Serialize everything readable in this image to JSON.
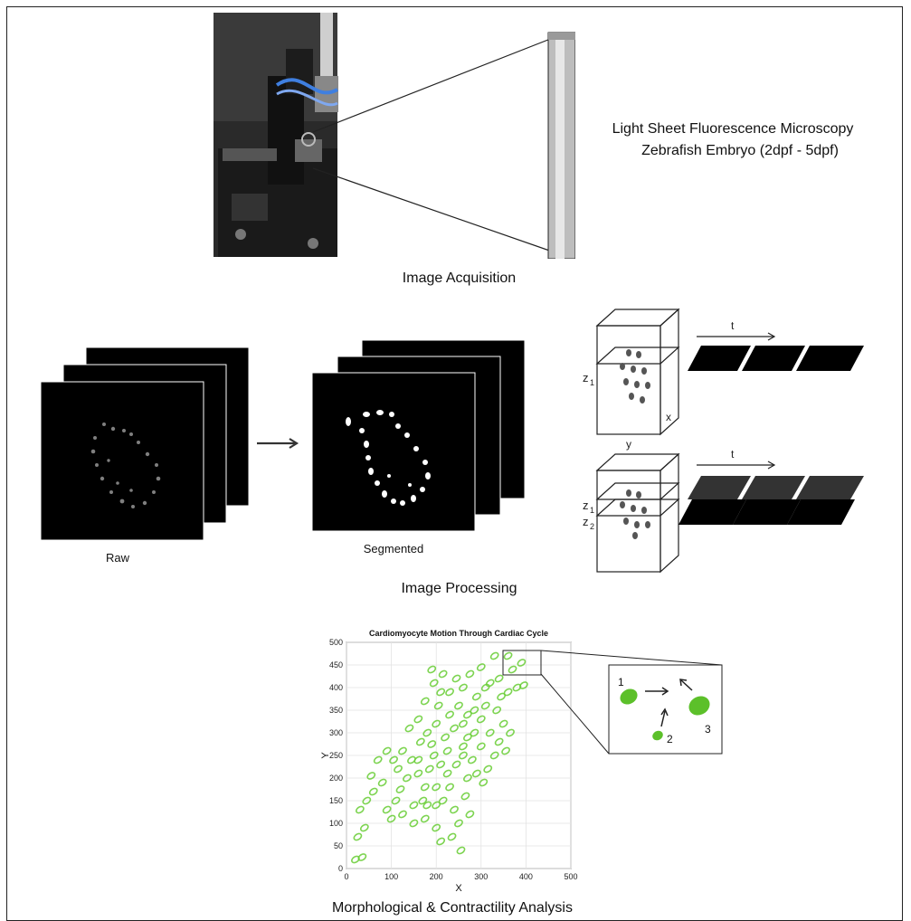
{
  "acquisition": {
    "title_line1": "Light Sheet Fluorescence Microscopy",
    "title_line2": "Zebrafish Embryo (2dpf - 5dpf)",
    "caption": "Image Acquisition"
  },
  "processing": {
    "raw_label": "Raw",
    "segmented_label": "Segmented",
    "caption": "Image Processing",
    "stack_axis_t": "t",
    "stack_axis_x": "x",
    "stack_axis_y": "y",
    "stack_z1": "z",
    "stack_z1_sub": "1",
    "stack_z2": "z",
    "stack_z2_sub": "2"
  },
  "analysis": {
    "caption": "Morphological & Contractility Analysis",
    "inset_labels": [
      "1",
      "2",
      "3"
    ]
  },
  "chart_data": {
    "type": "scatter",
    "title": "Cardiomyocyte Motion Through Cardiac Cycle",
    "xlabel": "X",
    "ylabel": "Y",
    "xlim": [
      0,
      500
    ],
    "ylim": [
      0,
      500
    ],
    "xticks": [
      0,
      100,
      200,
      300,
      400,
      500
    ],
    "yticks": [
      0,
      50,
      100,
      150,
      200,
      250,
      300,
      350,
      400,
      450,
      500
    ],
    "grid": true,
    "marker_color": "#66cc33",
    "points": [
      [
        20,
        20
      ],
      [
        35,
        25
      ],
      [
        25,
        70
      ],
      [
        40,
        90
      ],
      [
        30,
        130
      ],
      [
        45,
        150
      ],
      [
        60,
        170
      ],
      [
        55,
        205
      ],
      [
        80,
        190
      ],
      [
        90,
        130
      ],
      [
        100,
        110
      ],
      [
        110,
        150
      ],
      [
        120,
        175
      ],
      [
        115,
        220
      ],
      [
        135,
        200
      ],
      [
        145,
        240
      ],
      [
        160,
        210
      ],
      [
        150,
        140
      ],
      [
        170,
        150
      ],
      [
        175,
        180
      ],
      [
        185,
        220
      ],
      [
        195,
        250
      ],
      [
        165,
        280
      ],
      [
        180,
        300
      ],
      [
        200,
        320
      ],
      [
        190,
        275
      ],
      [
        210,
        230
      ],
      [
        225,
        210
      ],
      [
        230,
        180
      ],
      [
        215,
        150
      ],
      [
        240,
        130
      ],
      [
        250,
        100
      ],
      [
        235,
        70
      ],
      [
        255,
        40
      ],
      [
        265,
        160
      ],
      [
        270,
        200
      ],
      [
        280,
        240
      ],
      [
        260,
        270
      ],
      [
        285,
        300
      ],
      [
        300,
        330
      ],
      [
        270,
        340
      ],
      [
        250,
        360
      ],
      [
        240,
        310
      ],
      [
        220,
        290
      ],
      [
        205,
        360
      ],
      [
        230,
        390
      ],
      [
        260,
        400
      ],
      [
        290,
        380
      ],
      [
        310,
        360
      ],
      [
        320,
        300
      ],
      [
        300,
        270
      ],
      [
        330,
        250
      ],
      [
        340,
        280
      ],
      [
        350,
        320
      ],
      [
        320,
        410
      ],
      [
        340,
        420
      ],
      [
        360,
        390
      ],
      [
        380,
        400
      ],
      [
        395,
        405
      ],
      [
        370,
        440
      ],
      [
        390,
        455
      ],
      [
        360,
        470
      ],
      [
        330,
        470
      ],
      [
        140,
        310
      ],
      [
        125,
        260
      ],
      [
        105,
        240
      ],
      [
        200,
        180
      ],
      [
        150,
        100
      ],
      [
        175,
        110
      ],
      [
        200,
        90
      ],
      [
        210,
        60
      ],
      [
        245,
        230
      ],
      [
        260,
        250
      ],
      [
        290,
        210
      ],
      [
        305,
        190
      ],
      [
        315,
        220
      ],
      [
        275,
        120
      ],
      [
        225,
        260
      ],
      [
        160,
        330
      ],
      [
        175,
        370
      ],
      [
        195,
        410
      ],
      [
        215,
        430
      ],
      [
        285,
        350
      ],
      [
        335,
        350
      ],
      [
        345,
        380
      ],
      [
        90,
        260
      ],
      [
        70,
        240
      ],
      [
        125,
        120
      ],
      [
        245,
        420
      ],
      [
        275,
        430
      ],
      [
        300,
        445
      ],
      [
        310,
        400
      ],
      [
        355,
        260
      ],
      [
        365,
        300
      ],
      [
        180,
        140
      ],
      [
        160,
        240
      ],
      [
        200,
        140
      ],
      [
        230,
        340
      ],
      [
        260,
        320
      ],
      [
        270,
        290
      ],
      [
        210,
        390
      ],
      [
        190,
        440
      ]
    ]
  }
}
